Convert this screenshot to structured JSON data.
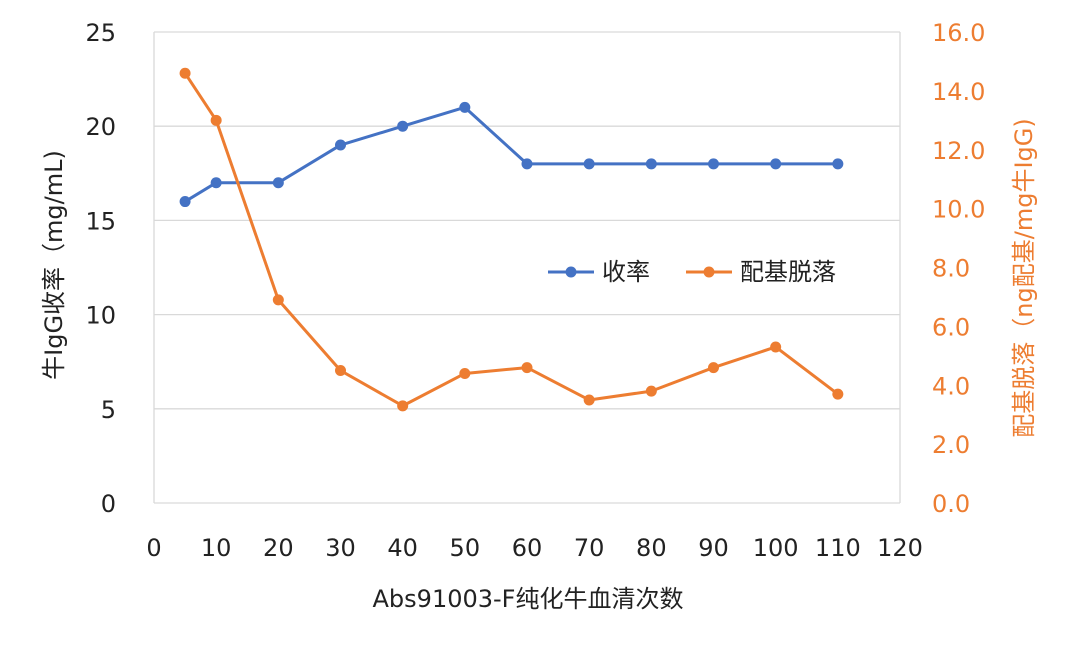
{
  "chart_data": {
    "type": "line",
    "xlabel": "Abs91003-F纯化牛血清次数",
    "ylabel": "牛IgG收率（mg/mL)",
    "y2label": "配基脱落（ng配基/mg牛IgG)",
    "xlim": [
      0,
      120
    ],
    "xticks": [
      0,
      10,
      20,
      30,
      40,
      50,
      60,
      70,
      80,
      90,
      100,
      110,
      120
    ],
    "ylim": [
      0,
      25
    ],
    "yticks": [
      "0",
      "5",
      "10",
      "15",
      "20",
      "25"
    ],
    "y2lim": [
      0,
      16
    ],
    "y2ticks": [
      "0.0",
      "2.0",
      "4.0",
      "6.0",
      "8.0",
      "10.0",
      "12.0",
      "14.0",
      "16.0"
    ],
    "grid": true,
    "legend_position": "center-right",
    "series": [
      {
        "name": "收率",
        "axis": "left",
        "color": "#4472C4",
        "x": [
          5,
          10,
          20,
          30,
          40,
          50,
          60,
          70,
          80,
          90,
          100,
          110
        ],
        "values": [
          16,
          17,
          17,
          19,
          20,
          21,
          18,
          18,
          18,
          18,
          18,
          18
        ]
      },
      {
        "name": "配基脱落",
        "axis": "right",
        "color": "#ED7D31",
        "x": [
          5,
          10,
          20,
          30,
          40,
          50,
          60,
          70,
          80,
          90,
          100,
          110
        ],
        "values": [
          14.6,
          13.0,
          6.9,
          4.5,
          3.3,
          4.4,
          4.6,
          3.5,
          3.8,
          4.6,
          5.3,
          3.7
        ]
      }
    ],
    "colors": {
      "left_axis_text": "#222222",
      "right_axis_text": "#ED7D31",
      "grid": "#d9d9d9"
    }
  }
}
